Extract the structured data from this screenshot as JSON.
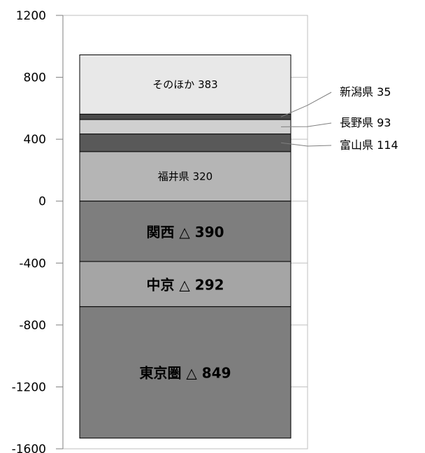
{
  "chart_data": {
    "type": "bar",
    "stacked": true,
    "categories": [
      ""
    ],
    "ylim": [
      -1600,
      1200
    ],
    "yticks": [
      "1200",
      "800",
      "400",
      "0",
      "-400",
      "-800",
      "-1200",
      "-1600"
    ],
    "grid": false,
    "positive_series": [
      {
        "name": "福井県",
        "value": 320,
        "label": "福井県 320",
        "color": "#b5b5b5",
        "label_style": "inside-small"
      },
      {
        "name": "富山県",
        "value": 114,
        "label": "富山県  114",
        "color": "#595959",
        "label_style": "callout"
      },
      {
        "name": "長野県",
        "value": 93,
        "label": "長野県  93",
        "color": "#d0d0d0",
        "label_style": "callout"
      },
      {
        "name": "新潟県",
        "value": 35,
        "label": "新潟県  35",
        "color": "#4a4a4a",
        "label_style": "callout"
      },
      {
        "name": "そのほか",
        "value": 383,
        "label": "そのほか  383",
        "color": "#e8e8e8",
        "label_style": "inside-small"
      }
    ],
    "negative_series": [
      {
        "name": "関西",
        "value": -390,
        "label": "関西 △ 390",
        "color": "#7e7e7e",
        "label_style": "inside-big"
      },
      {
        "name": "中京",
        "value": -292,
        "label": "中京 △ 292",
        "color": "#a5a5a5",
        "label_style": "inside-big"
      },
      {
        "name": "東京圏",
        "value": -849,
        "label": "東京圏 △ 849",
        "color": "#7e7e7e",
        "label_style": "inside-big"
      }
    ]
  }
}
